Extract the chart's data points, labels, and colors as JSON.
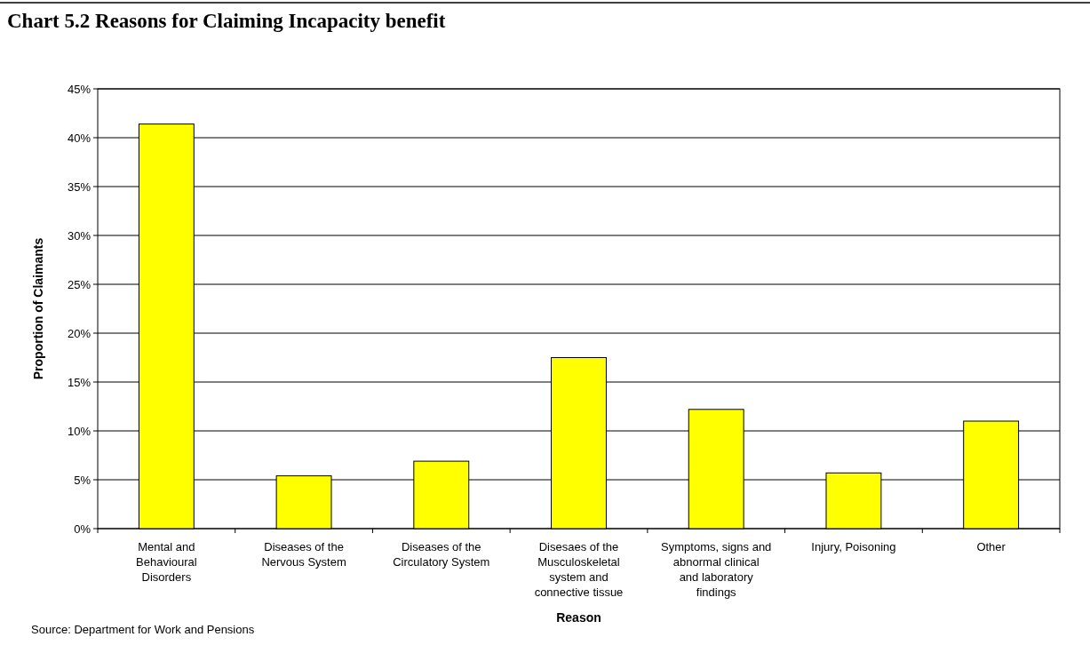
{
  "chart_data": {
    "type": "bar",
    "title": "Chart 5.2 Reasons for Claiming Incapacity benefit",
    "xlabel": "Reason",
    "ylabel": "Proportion of Claimants",
    "categories": [
      "Mental and Behavioural Disorders",
      "Diseases of the Nervous System",
      "Diseases of the Circulatory System",
      "Disesaes of the Musculoskeletal system and connective tissue",
      "Symptoms, signs and abnormal clinical and laboratory findings",
      "Injury, Poisoning",
      "Other"
    ],
    "values": [
      41.4,
      5.4,
      6.9,
      17.5,
      12.2,
      5.7,
      11.0
    ],
    "color": "#ffff00",
    "ylim": [
      0,
      45
    ],
    "yticks": [
      {
        "value": 0,
        "label": "0%"
      },
      {
        "value": 5,
        "label": "5%"
      },
      {
        "value": 10,
        "label": "10%"
      },
      {
        "value": 15,
        "label": "15%"
      },
      {
        "value": 20,
        "label": "20%"
      },
      {
        "value": 25,
        "label": "25%"
      },
      {
        "value": 30,
        "label": "30%"
      },
      {
        "value": 35,
        "label": "35%"
      },
      {
        "value": 40,
        "label": "40%"
      },
      {
        "value": 45,
        "label": "45%"
      }
    ],
    "grid": "y",
    "annotations": [
      "Source: Department for Work and Pensions"
    ]
  }
}
